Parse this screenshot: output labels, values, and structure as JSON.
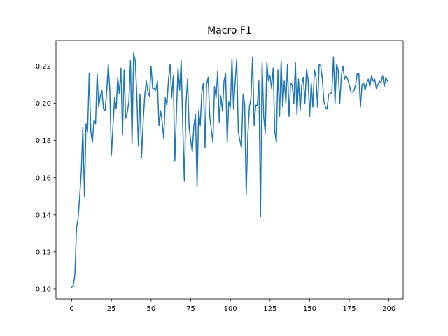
{
  "chart_data": {
    "type": "line",
    "title": "Macro F1",
    "x": [
      0,
      1,
      2,
      3,
      4,
      5,
      6,
      7,
      8,
      9,
      10,
      11,
      12,
      13,
      14,
      15,
      16,
      17,
      18,
      19,
      20,
      21,
      22,
      23,
      24,
      25,
      26,
      27,
      28,
      29,
      30,
      31,
      32,
      33,
      34,
      35,
      36,
      37,
      38,
      39,
      40,
      41,
      42,
      43,
      44,
      45,
      46,
      47,
      48,
      49,
      50,
      51,
      52,
      53,
      54,
      55,
      56,
      57,
      58,
      59,
      60,
      61,
      62,
      63,
      64,
      65,
      66,
      67,
      68,
      69,
      70,
      71,
      72,
      73,
      74,
      75,
      76,
      77,
      78,
      79,
      80,
      81,
      82,
      83,
      84,
      85,
      86,
      87,
      88,
      89,
      90,
      91,
      92,
      93,
      94,
      95,
      96,
      97,
      98,
      99,
      100,
      101,
      102,
      103,
      104,
      105,
      106,
      107,
      108,
      109,
      110,
      111,
      112,
      113,
      114,
      115,
      116,
      117,
      118,
      119,
      120,
      121,
      122,
      123,
      124,
      125,
      126,
      127,
      128,
      129,
      130,
      131,
      132,
      133,
      134,
      135,
      136,
      137,
      138,
      139,
      140,
      141,
      142,
      143,
      144,
      145,
      146,
      147,
      148,
      149,
      150,
      151,
      152,
      153,
      154,
      155,
      156,
      157,
      158,
      159,
      160,
      161,
      162,
      163,
      164,
      165,
      166,
      167,
      168,
      169,
      170,
      171,
      172,
      173,
      174,
      175,
      176,
      177,
      178,
      179,
      180,
      181,
      182,
      183,
      184,
      185,
      186,
      187,
      188,
      189,
      190,
      191,
      192,
      193,
      194,
      195,
      196,
      197,
      198,
      199
    ],
    "series": [
      {
        "color": "#1f77b4",
        "values": [
          0.101,
          0.102,
          0.108,
          0.133,
          0.138,
          0.15,
          0.163,
          0.187,
          0.15,
          0.189,
          0.185,
          0.216,
          0.185,
          0.179,
          0.191,
          0.189,
          0.216,
          0.198,
          0.204,
          0.207,
          0.197,
          0.196,
          0.206,
          0.221,
          0.207,
          0.172,
          0.188,
          0.203,
          0.197,
          0.214,
          0.205,
          0.219,
          0.183,
          0.218,
          0.192,
          0.195,
          0.201,
          0.223,
          0.178,
          0.227,
          0.223,
          0.205,
          0.177,
          0.205,
          0.171,
          0.19,
          0.204,
          0.212,
          0.206,
          0.204,
          0.22,
          0.208,
          0.208,
          0.207,
          0.212,
          0.188,
          0.196,
          0.19,
          0.181,
          0.203,
          0.199,
          0.213,
          0.221,
          0.203,
          0.215,
          0.169,
          0.195,
          0.219,
          0.207,
          0.223,
          0.187,
          0.158,
          0.199,
          0.213,
          0.187,
          0.18,
          0.174,
          0.188,
          0.194,
          0.155,
          0.196,
          0.188,
          0.206,
          0.211,
          0.176,
          0.21,
          0.214,
          0.193,
          0.186,
          0.179,
          0.209,
          0.203,
          0.217,
          0.19,
          0.204,
          0.196,
          0.212,
          0.216,
          0.179,
          0.201,
          0.198,
          0.224,
          0.197,
          0.211,
          0.224,
          0.185,
          0.18,
          0.176,
          0.205,
          0.2,
          0.151,
          0.183,
          0.198,
          0.203,
          0.225,
          0.188,
          0.199,
          0.199,
          0.212,
          0.139,
          0.222,
          0.193,
          0.184,
          0.222,
          0.212,
          0.215,
          0.208,
          0.219,
          0.185,
          0.179,
          0.218,
          0.193,
          0.223,
          0.198,
          0.212,
          0.2,
          0.221,
          0.193,
          0.211,
          0.21,
          0.2,
          0.222,
          0.194,
          0.213,
          0.196,
          0.21,
          0.214,
          0.2,
          0.218,
          0.213,
          0.193,
          0.211,
          0.198,
          0.218,
          0.214,
          0.198,
          0.221,
          0.22,
          0.213,
          0.201,
          0.198,
          0.197,
          0.205,
          0.205,
          0.206,
          0.225,
          0.2,
          0.221,
          0.218,
          0.2,
          0.215,
          0.22,
          0.213,
          0.215,
          0.213,
          0.21,
          0.206,
          0.206,
          0.207,
          0.21,
          0.216,
          0.216,
          0.198,
          0.21,
          0.211,
          0.207,
          0.211,
          0.213,
          0.209,
          0.215,
          0.212,
          0.213,
          0.208,
          0.21,
          0.212,
          0.211,
          0.215,
          0.209,
          0.214,
          0.212
        ]
      }
    ],
    "xlim": [
      -9.95,
      208.95
    ],
    "ylim": [
      0.0947,
      0.2338
    ],
    "xticks": [
      0,
      25,
      50,
      75,
      100,
      125,
      150,
      175,
      200
    ],
    "yticks": [
      {
        "value": 0.1,
        "label": "0.10"
      },
      0.12,
      0.14,
      0.16,
      0.18,
      {
        "value": 0.2,
        "label": "0.20"
      },
      0.22
    ]
  }
}
